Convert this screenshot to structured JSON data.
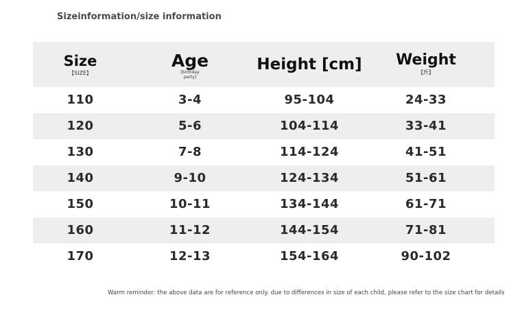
{
  "title": "Sizeinformation/size information",
  "header": {
    "size": {
      "label": "Size",
      "sub": "【SIZE】"
    },
    "age": {
      "label": "Age",
      "sub": "[birthday\nparty]"
    },
    "height": {
      "label": "Height [cm]"
    },
    "weight": {
      "label": "Weight",
      "sub": "【斤】"
    }
  },
  "rows": [
    {
      "size": "110",
      "age": "3-4",
      "height": "95-104",
      "weight": "24-33"
    },
    {
      "size": "120",
      "age": "5-6",
      "height": "104-114",
      "weight": "33-41"
    },
    {
      "size": "130",
      "age": "7-8",
      "height": "114-124",
      "weight": "41-51"
    },
    {
      "size": "140",
      "age": "9-10",
      "height": "124-134",
      "weight": "51-61"
    },
    {
      "size": "150",
      "age": "10-11",
      "height": "134-144",
      "weight": "61-71"
    },
    {
      "size": "160",
      "age": "11-12",
      "height": "144-154",
      "weight": "71-81"
    },
    {
      "size": "170",
      "age": "12-13",
      "height": "154-164",
      "weight": "90-102"
    }
  ],
  "footnote": "Warm reminder: the above data are for reference only. due to differences in size of each child, please refer to the size chart for details",
  "colors": {
    "header_bg": "#eeeeee",
    "stripe_bg": "#eeeeee",
    "text": "#2a2a2a"
  }
}
